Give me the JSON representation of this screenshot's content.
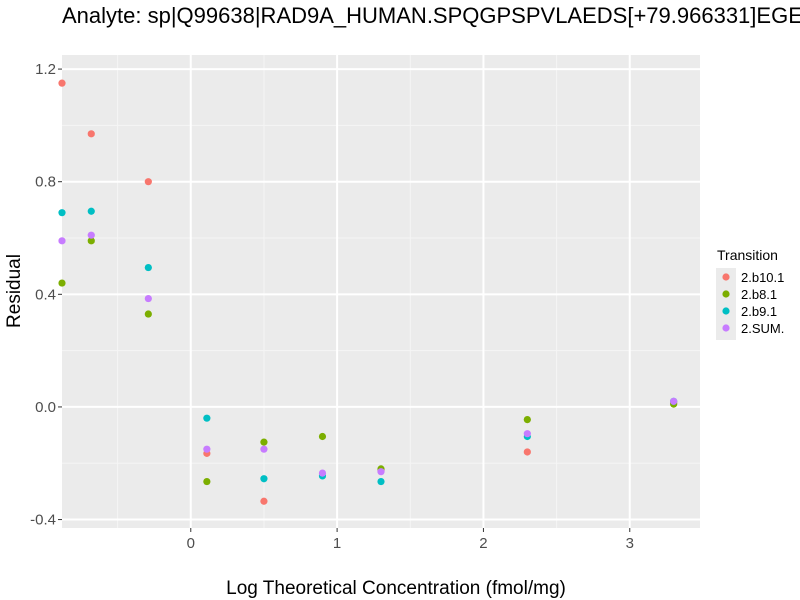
{
  "chart_data": {
    "type": "scatter",
    "title": "Analyte: sp|Q99638|RAD9A_HUMAN.SPQGPSPVLAEDS[+79.966331]EGE",
    "xlabel": "Log Theoretical Concentration (fmol/mg)",
    "ylabel": "Residual",
    "xlim": [
      -0.88,
      3.48
    ],
    "ylim": [
      -0.43,
      1.25
    ],
    "xticks": [
      0,
      1,
      2,
      3
    ],
    "yticks": [
      -0.4,
      0.0,
      0.4,
      0.8,
      1.2
    ],
    "xtick_labels": [
      "0",
      "1",
      "2",
      "3"
    ],
    "ytick_labels": [
      "-0.4",
      "0.0",
      "0.4",
      "0.8",
      "1.2"
    ],
    "grid": true,
    "legend": {
      "title": "Transition",
      "placement": "right"
    },
    "series": [
      {
        "name": "2.b10.1",
        "color": "#F8766D",
        "points": [
          [
            -0.88,
            1.15
          ],
          [
            -0.68,
            0.97
          ],
          [
            -0.29,
            0.8
          ],
          [
            0.11,
            -0.165
          ],
          [
            0.5,
            -0.335
          ],
          [
            1.3,
            -0.225
          ],
          [
            2.3,
            -0.16
          ],
          [
            3.3,
            0.015
          ]
        ]
      },
      {
        "name": "2.b8.1",
        "color": "#7CAE00",
        "points": [
          [
            -0.88,
            0.44
          ],
          [
            -0.68,
            0.59
          ],
          [
            -0.29,
            0.33
          ],
          [
            0.11,
            -0.265
          ],
          [
            0.5,
            -0.125
          ],
          [
            0.9,
            -0.105
          ],
          [
            1.3,
            -0.22
          ],
          [
            2.3,
            -0.045
          ],
          [
            3.3,
            0.01
          ]
        ]
      },
      {
        "name": "2.b9.1",
        "color": "#00BFC4",
        "points": [
          [
            -0.88,
            0.69
          ],
          [
            -0.68,
            0.695
          ],
          [
            -0.29,
            0.495
          ],
          [
            0.11,
            -0.04
          ],
          [
            0.5,
            -0.255
          ],
          [
            0.9,
            -0.245
          ],
          [
            1.3,
            -0.265
          ],
          [
            2.3,
            -0.105
          ],
          [
            3.3,
            0.02
          ]
        ]
      },
      {
        "name": "2.SUM.",
        "color": "#C77CFF",
        "points": [
          [
            -0.88,
            0.59
          ],
          [
            -0.68,
            0.61
          ],
          [
            -0.29,
            0.385
          ],
          [
            0.11,
            -0.15
          ],
          [
            0.5,
            -0.15
          ],
          [
            0.9,
            -0.235
          ],
          [
            1.3,
            -0.23
          ],
          [
            2.3,
            -0.095
          ],
          [
            3.3,
            0.02
          ]
        ]
      }
    ]
  }
}
